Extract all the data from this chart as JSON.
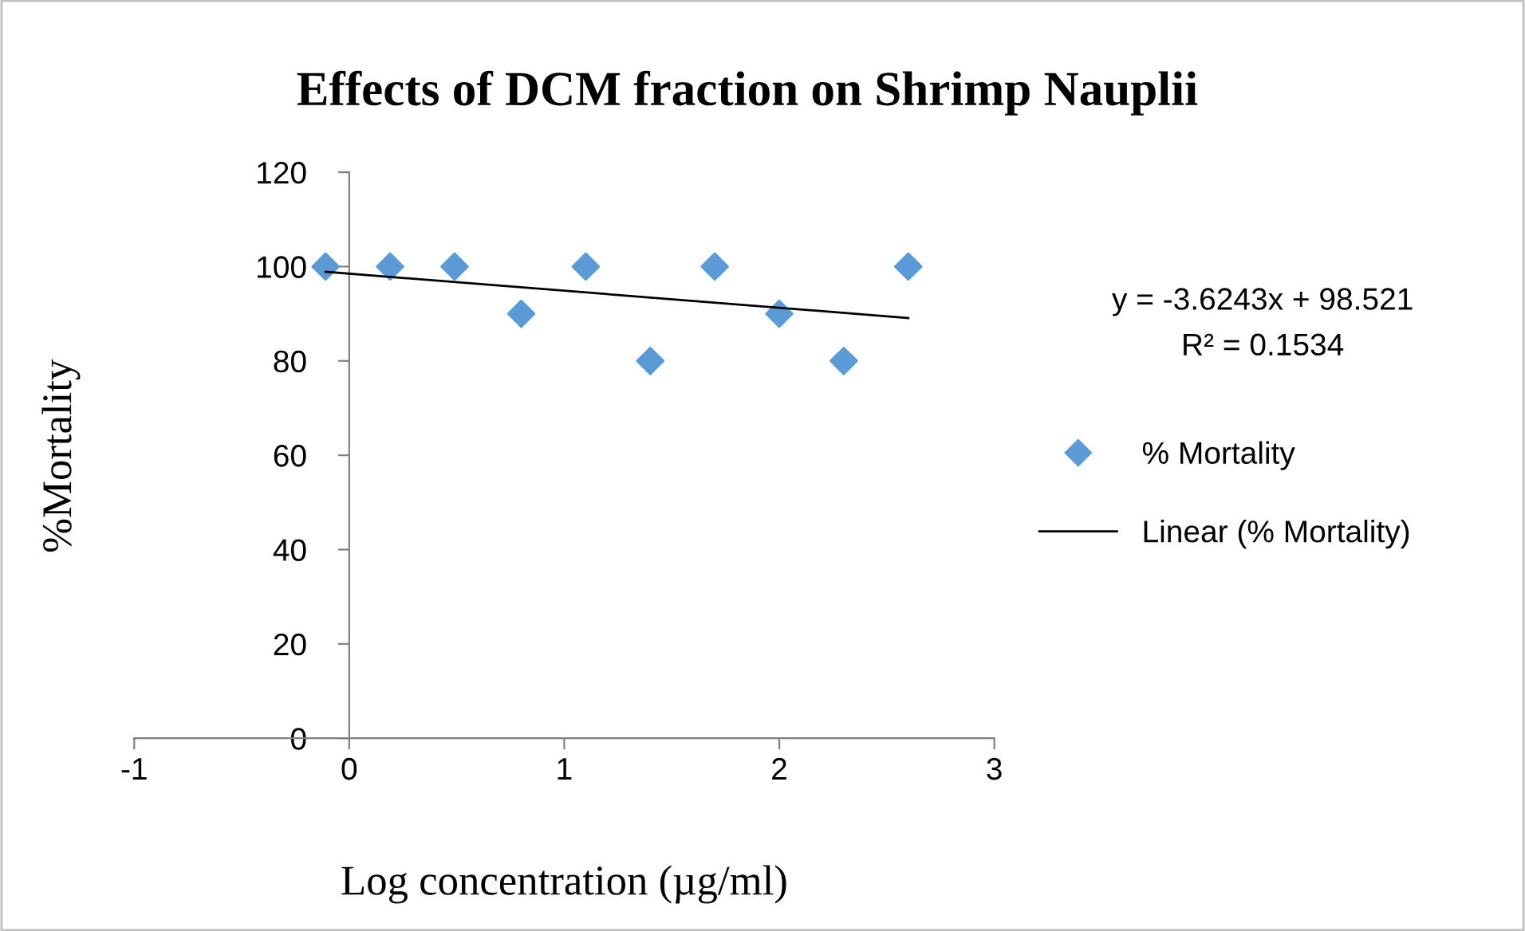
{
  "chart_data": {
    "type": "scatter",
    "title": "Effects of DCM fraction on Shrimp Nauplii",
    "xlabel": "Log concentration (µg/ml)",
    "ylabel": "%Mortality",
    "series": [
      {
        "name": "% Mortality",
        "color": "#5b9bd5",
        "marker": "diamond",
        "x": [
          -0.11,
          0.19,
          0.49,
          0.8,
          1.1,
          1.4,
          1.7,
          2.0,
          2.3,
          2.6
        ],
        "values": [
          100,
          100,
          100,
          90,
          100,
          80,
          100,
          90,
          80,
          100
        ]
      },
      {
        "name": "Linear (% Mortality)",
        "type": "line",
        "color": "#000000",
        "line_style": "solid",
        "x": [
          -0.11,
          2.6
        ],
        "values": [
          98.9,
          89.1
        ]
      }
    ],
    "xlim": [
      -1,
      3
    ],
    "xticks": [
      -1,
      0,
      1,
      2,
      3
    ],
    "ylim": [
      0,
      120
    ],
    "yticks": [
      0,
      20,
      40,
      60,
      80,
      100,
      120
    ],
    "annotations": [
      "y = -3.6243x + 98.521",
      "R² = 0.1534"
    ],
    "grid": false,
    "legend": "right"
  }
}
